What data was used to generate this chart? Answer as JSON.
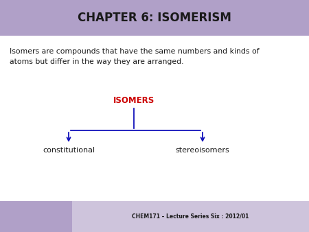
{
  "title": "CHAPTER 6: ISOMERISM",
  "title_bg_color": "#b0a0c8",
  "title_text_color": "#1a1a1a",
  "body_bg_color": "#ffffff",
  "footer_bg_color_left": "#b0a0c8",
  "footer_bg_color_right": "#cec4dc",
  "body_text": "Isomers are compounds that have the same numbers and kinds of\natoms but differ in the way they are arranged.",
  "body_text_color": "#1a1a1a",
  "isomers_label": "ISOMERS",
  "isomers_label_color": "#cc0000",
  "left_label": "constitutional",
  "right_label": "stereoisomers",
  "branch_color": "#1111bb",
  "footer_text": "CHEM171 – Lecture Series Six : 2012/01",
  "footer_text_color": "#1a1a1a",
  "title_fontsize": 12,
  "body_fontsize": 7.8,
  "isomers_fontsize": 8.5,
  "label_fontsize": 8,
  "footer_fontsize": 5.5
}
